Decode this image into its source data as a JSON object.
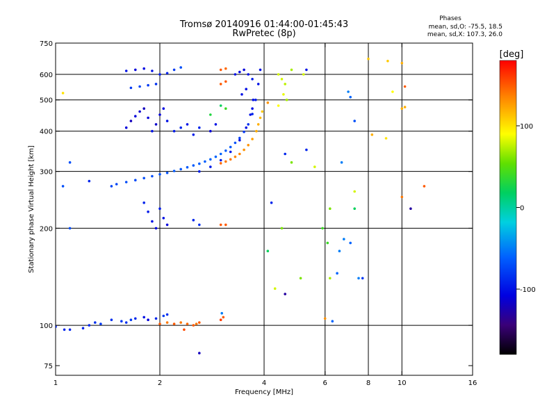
{
  "header": {
    "title": "Tromsø 20140916 01:44:00-01:45:43",
    "subtitle": "RwPretec (8p)",
    "phases_title": "Phases",
    "phases_line1": "mean, sd,O: -75.5, 18.5",
    "phases_line2": "mean, sd,X: 107.3, 26.0"
  },
  "colorbar": {
    "label": "[deg]",
    "tick_labels": [
      "100",
      "0",
      "-100"
    ],
    "tick_values": [
      100,
      0,
      -100
    ],
    "range": [
      -180,
      180
    ]
  },
  "chart_data": {
    "type": "scatter",
    "title": "Tromsø 20140916 01:44:00-01:45:43",
    "subtitle": "RwPretec (8p)",
    "xlabel": "Frequency [MHz]",
    "ylabel": "Stationary phase Virtual Height [km]",
    "x_scale": "log",
    "y_scale": "log",
    "xlim": [
      1,
      16
    ],
    "ylim": [
      70,
      750
    ],
    "x_ticks": [
      1,
      2,
      4,
      6,
      8,
      10,
      16
    ],
    "x_tick_labels": [
      "1",
      "2",
      "4",
      "6",
      "8",
      "10",
      "16"
    ],
    "x_grid": [
      2,
      4,
      6,
      8,
      10
    ],
    "y_ticks": [
      75,
      100,
      200,
      300,
      400,
      500,
      600,
      750
    ],
    "y_tick_labels": [
      "75",
      "100",
      "200",
      "300",
      "400",
      "500",
      "600",
      "750"
    ],
    "y_grid": [
      100,
      200,
      300,
      400,
      500,
      600
    ],
    "grid": true,
    "color_scale": "phase in degrees, -180 (black) to 180 (red) via blue, cyan, green, yellow, orange",
    "series": [
      {
        "points": [
          [
            1.0,
            99,
            -90
          ],
          [
            1.06,
            97,
            -90
          ],
          [
            1.1,
            97,
            -90
          ],
          [
            1.2,
            98,
            -90
          ],
          [
            1.25,
            100,
            -90
          ],
          [
            1.3,
            102,
            -85
          ],
          [
            1.35,
            101,
            -80
          ],
          [
            1.45,
            104,
            -85
          ],
          [
            1.55,
            103,
            -80
          ],
          [
            1.6,
            102,
            -85
          ],
          [
            1.65,
            104,
            -80
          ],
          [
            1.7,
            105,
            -90
          ],
          [
            1.8,
            106,
            -100
          ],
          [
            1.85,
            104,
            -110
          ],
          [
            1.95,
            105,
            -90
          ],
          [
            2.05,
            107,
            -80
          ],
          [
            2.1,
            108,
            -85
          ]
        ]
      },
      {
        "points": [
          [
            2.0,
            101,
            150
          ],
          [
            2.1,
            102,
            140
          ],
          [
            2.2,
            101,
            150
          ],
          [
            2.3,
            102,
            140
          ],
          [
            2.4,
            101,
            145
          ],
          [
            2.5,
            100,
            150
          ],
          [
            2.55,
            101,
            140
          ],
          [
            2.6,
            102,
            150
          ],
          [
            2.35,
            97,
            155
          ],
          [
            3.0,
            104,
            160
          ],
          [
            3.05,
            106,
            150
          ],
          [
            3.02,
            109,
            -50
          ]
        ]
      },
      {
        "points": [
          [
            1.45,
            270,
            -75
          ],
          [
            1.5,
            274,
            -75
          ],
          [
            1.6,
            278,
            -72
          ],
          [
            1.7,
            282,
            -72
          ],
          [
            1.8,
            286,
            -70
          ],
          [
            1.9,
            290,
            -70
          ],
          [
            2.0,
            294,
            -68
          ],
          [
            2.1,
            297,
            -68
          ],
          [
            2.2,
            301,
            -66
          ],
          [
            2.3,
            305,
            -66
          ],
          [
            2.4,
            309,
            -64
          ],
          [
            2.5,
            313,
            -64
          ],
          [
            2.6,
            317,
            -62
          ],
          [
            2.7,
            322,
            -62
          ],
          [
            2.8,
            327,
            -60
          ],
          [
            2.9,
            333,
            -60
          ],
          [
            3.0,
            340,
            -60
          ],
          [
            3.1,
            348,
            -62
          ],
          [
            3.2,
            357,
            -65
          ],
          [
            3.3,
            368,
            -70
          ],
          [
            3.4,
            381,
            -75
          ],
          [
            3.5,
            398,
            -80
          ],
          [
            3.6,
            420,
            -85
          ],
          [
            3.7,
            452,
            -90
          ],
          [
            3.78,
            500,
            -95
          ],
          [
            3.85,
            560,
            -100
          ],
          [
            3.9,
            620,
            -100
          ]
        ]
      },
      {
        "points": [
          [
            2.6,
            300,
            -95
          ],
          [
            2.8,
            310,
            -95
          ],
          [
            3.0,
            325,
            -95
          ],
          [
            3.2,
            345,
            -95
          ],
          [
            3.4,
            375,
            -100
          ],
          [
            3.55,
            410,
            -100
          ],
          [
            3.65,
            450,
            -100
          ],
          [
            3.72,
            500,
            -100
          ]
        ]
      },
      {
        "points": [
          [
            3.0,
            318,
            145
          ],
          [
            3.1,
            322,
            140
          ],
          [
            3.2,
            327,
            140
          ],
          [
            3.3,
            333,
            135
          ],
          [
            3.4,
            340,
            135
          ],
          [
            3.5,
            350,
            130
          ],
          [
            3.6,
            362,
            130
          ],
          [
            3.7,
            378,
            125
          ],
          [
            3.8,
            400,
            120
          ],
          [
            3.85,
            420,
            120
          ],
          [
            3.9,
            440,
            115
          ],
          [
            3.95,
            460,
            110
          ]
        ]
      },
      {
        "points": [
          [
            1.6,
            615,
            -100
          ],
          [
            1.7,
            620,
            -110
          ],
          [
            1.8,
            625,
            -105
          ],
          [
            1.9,
            615,
            -100
          ],
          [
            2.0,
            600,
            -95
          ],
          [
            2.1,
            605,
            -90
          ],
          [
            2.2,
            620,
            -80
          ],
          [
            2.3,
            630,
            -70
          ],
          [
            1.65,
            545,
            -80
          ],
          [
            1.75,
            550,
            -75
          ],
          [
            1.85,
            555,
            -80
          ],
          [
            1.95,
            560,
            -85
          ]
        ]
      },
      {
        "points": [
          [
            1.6,
            410,
            -110
          ],
          [
            1.65,
            430,
            -120
          ],
          [
            1.7,
            445,
            -110
          ],
          [
            1.75,
            460,
            -115
          ],
          [
            1.8,
            470,
            -120
          ],
          [
            1.85,
            440,
            -110
          ],
          [
            1.9,
            400,
            -100
          ],
          [
            1.95,
            420,
            -115
          ],
          [
            2.0,
            450,
            -110
          ],
          [
            2.05,
            470,
            -105
          ],
          [
            2.1,
            430,
            -100
          ],
          [
            2.2,
            400,
            -95
          ],
          [
            2.3,
            410,
            -90
          ],
          [
            2.4,
            420,
            -100
          ],
          [
            2.5,
            390,
            -95
          ],
          [
            2.6,
            410,
            -90
          ],
          [
            2.8,
            400,
            -110
          ],
          [
            2.9,
            420,
            -100
          ]
        ]
      },
      {
        "points": [
          [
            1.8,
            240,
            -90
          ],
          [
            1.85,
            225,
            -95
          ],
          [
            1.9,
            210,
            -100
          ],
          [
            1.95,
            200,
            -105
          ],
          [
            2.0,
            230,
            -95
          ],
          [
            2.05,
            215,
            -100
          ],
          [
            2.1,
            205,
            -110
          ],
          [
            2.5,
            212,
            -90
          ],
          [
            2.6,
            205,
            -85
          ]
        ]
      },
      {
        "points": [
          [
            3.0,
            205,
            150
          ],
          [
            3.1,
            205,
            150
          ]
        ]
      },
      {
        "points": [
          [
            3.0,
            620,
            150
          ],
          [
            3.1,
            625,
            145
          ],
          [
            3.0,
            560,
            150
          ],
          [
            3.1,
            570,
            150
          ]
        ]
      },
      {
        "points": [
          [
            3.3,
            600,
            -100
          ],
          [
            3.4,
            610,
            -105
          ],
          [
            3.5,
            620,
            -110
          ],
          [
            3.6,
            600,
            -100
          ],
          [
            3.7,
            580,
            -95
          ],
          [
            3.45,
            520,
            -100
          ],
          [
            3.55,
            540,
            -100
          ]
        ]
      },
      {
        "points": [
          [
            4.4,
            600,
            80
          ],
          [
            4.5,
            580,
            80
          ],
          [
            4.6,
            560,
            75
          ],
          [
            4.55,
            520,
            85
          ],
          [
            4.65,
            500,
            70
          ],
          [
            4.4,
            480,
            90
          ],
          [
            4.8,
            620,
            70
          ],
          [
            5.2,
            600,
            80
          ],
          [
            5.3,
            620,
            -100
          ]
        ]
      },
      {
        "points": [
          [
            2.8,
            450,
            30
          ],
          [
            3.0,
            480,
            20
          ],
          [
            3.1,
            470,
            40
          ],
          [
            3.7,
            470,
            -100
          ],
          [
            4.1,
            490,
            130
          ],
          [
            4.6,
            340,
            -90
          ],
          [
            5.3,
            350,
            -90
          ],
          [
            5.6,
            310,
            80
          ],
          [
            4.8,
            320,
            60
          ],
          [
            6.7,
            320,
            -50
          ],
          [
            6.2,
            230,
            60
          ],
          [
            7.3,
            260,
            80
          ],
          [
            7.3,
            230,
            20
          ],
          [
            8.2,
            390,
            120
          ],
          [
            9.0,
            380,
            100
          ],
          [
            10.0,
            470,
            120
          ],
          [
            10.0,
            250,
            140
          ],
          [
            10.6,
            230,
            -130
          ],
          [
            11.6,
            270,
            150
          ],
          [
            4.2,
            240,
            -90
          ],
          [
            4.5,
            200,
            60
          ],
          [
            5.9,
            200,
            40
          ],
          [
            6.1,
            180,
            40
          ],
          [
            6.2,
            140,
            70
          ],
          [
            6.5,
            145,
            -60
          ],
          [
            6.6,
            170,
            -50
          ],
          [
            6.8,
            185,
            -50
          ],
          [
            7.1,
            180,
            -60
          ],
          [
            7.5,
            140,
            -50
          ],
          [
            7.7,
            140,
            -80
          ],
          [
            4.1,
            170,
            20
          ],
          [
            4.3,
            130,
            80
          ],
          [
            4.6,
            125,
            -130
          ],
          [
            5.1,
            140,
            60
          ],
          [
            6.0,
            105,
            130
          ],
          [
            6.3,
            103,
            -60
          ],
          [
            2.6,
            82,
            -120
          ],
          [
            1.05,
            270,
            -70
          ],
          [
            1.1,
            320,
            -70
          ],
          [
            1.25,
            280,
            -90
          ],
          [
            1.1,
            200,
            -70
          ],
          [
            1.05,
            525,
            100
          ],
          [
            7.0,
            530,
            -50
          ],
          [
            7.1,
            510,
            -60
          ],
          [
            7.3,
            430,
            -70
          ],
          [
            8.0,
            670,
            110
          ],
          [
            9.1,
            660,
            110
          ],
          [
            10.0,
            650,
            120
          ],
          [
            10.2,
            550,
            150
          ],
          [
            10.2,
            475,
            120
          ],
          [
            9.4,
            530,
            90
          ]
        ]
      }
    ]
  }
}
